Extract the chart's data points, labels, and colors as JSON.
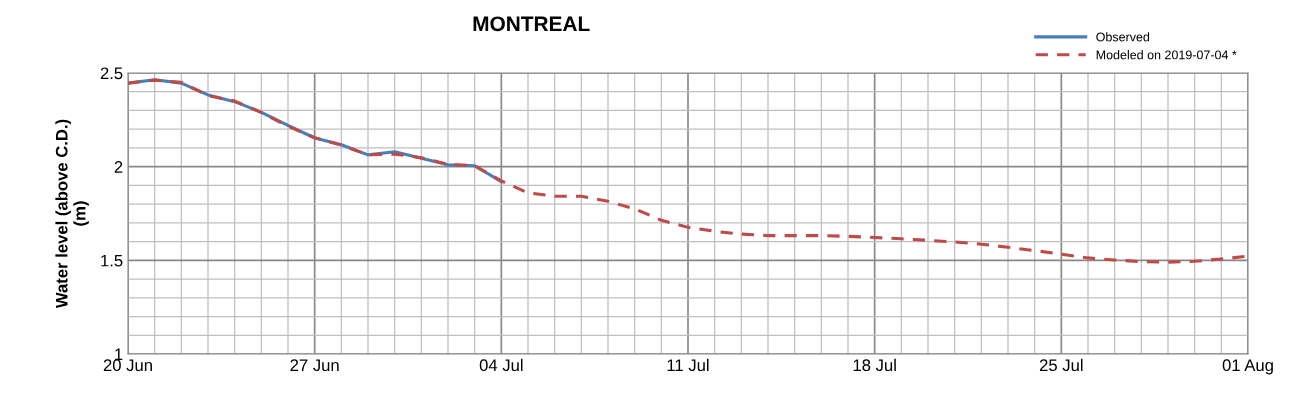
{
  "chart_data": {
    "type": "line",
    "title": "MONTREAL",
    "ylabel": "Water level (above C.D.)\n(m)",
    "x": [
      "2019-06-20",
      "2019-06-21",
      "2019-06-22",
      "2019-06-23",
      "2019-06-24",
      "2019-06-25",
      "2019-06-26",
      "2019-06-27",
      "2019-06-28",
      "2019-06-29",
      "2019-06-30",
      "2019-07-01",
      "2019-07-02",
      "2019-07-03",
      "2019-07-04",
      "2019-07-05",
      "2019-07-06",
      "2019-07-07",
      "2019-07-08",
      "2019-07-09",
      "2019-07-10",
      "2019-07-11",
      "2019-07-12",
      "2019-07-13",
      "2019-07-14",
      "2019-07-15",
      "2019-07-16",
      "2019-07-17",
      "2019-07-18",
      "2019-07-19",
      "2019-07-20",
      "2019-07-21",
      "2019-07-22",
      "2019-07-23",
      "2019-07-24",
      "2019-07-25",
      "2019-07-26",
      "2019-07-27",
      "2019-07-28",
      "2019-07-29",
      "2019-07-30",
      "2019-07-31",
      "2019-08-01"
    ],
    "series": [
      {
        "name": "Observed",
        "color": "#4a7ebb",
        "line_style": "solid",
        "values": [
          2.446,
          2.464,
          2.446,
          2.383,
          2.347,
          2.29,
          2.22,
          2.153,
          2.117,
          2.063,
          2.08,
          2.045,
          2.01,
          2.005,
          1.92,
          null,
          null,
          null,
          null,
          null,
          null,
          null,
          null,
          null,
          null,
          null,
          null,
          null,
          null,
          null,
          null,
          null,
          null,
          null,
          null,
          null,
          null,
          null,
          null,
          null,
          null,
          null,
          null
        ]
      },
      {
        "name": "Modeled on 2019-07-04 *",
        "color": "#be4b48",
        "line_style": "dashed",
        "values": [
          2.446,
          2.462,
          2.45,
          2.38,
          2.35,
          2.29,
          2.215,
          2.155,
          2.115,
          2.063,
          2.067,
          2.048,
          2.012,
          2.005,
          1.924,
          1.86,
          1.842,
          1.842,
          1.815,
          1.775,
          1.714,
          1.676,
          1.655,
          1.64,
          1.632,
          1.632,
          1.632,
          1.628,
          1.622,
          1.615,
          1.607,
          1.598,
          1.586,
          1.57,
          1.552,
          1.533,
          1.513,
          1.502,
          1.493,
          1.49,
          1.495,
          1.507,
          1.522
        ]
      }
    ],
    "xlim": [
      "2019-06-20",
      "2019-08-01"
    ],
    "xticks": [
      {
        "value": "2019-06-20",
        "label": "20 Jun"
      },
      {
        "value": "2019-06-27",
        "label": "27 Jun"
      },
      {
        "value": "2019-07-04",
        "label": "04 Jul"
      },
      {
        "value": "2019-07-11",
        "label": "11 Jul"
      },
      {
        "value": "2019-07-18",
        "label": "18 Jul"
      },
      {
        "value": "2019-07-25",
        "label": "25 Jul"
      },
      {
        "value": "2019-08-01",
        "label": "01 Aug"
      }
    ],
    "ylim": [
      1,
      2.5
    ],
    "yticks": [
      1,
      1.5,
      2,
      2.5
    ],
    "grid": true,
    "legend": "top right",
    "marker": "none"
  }
}
